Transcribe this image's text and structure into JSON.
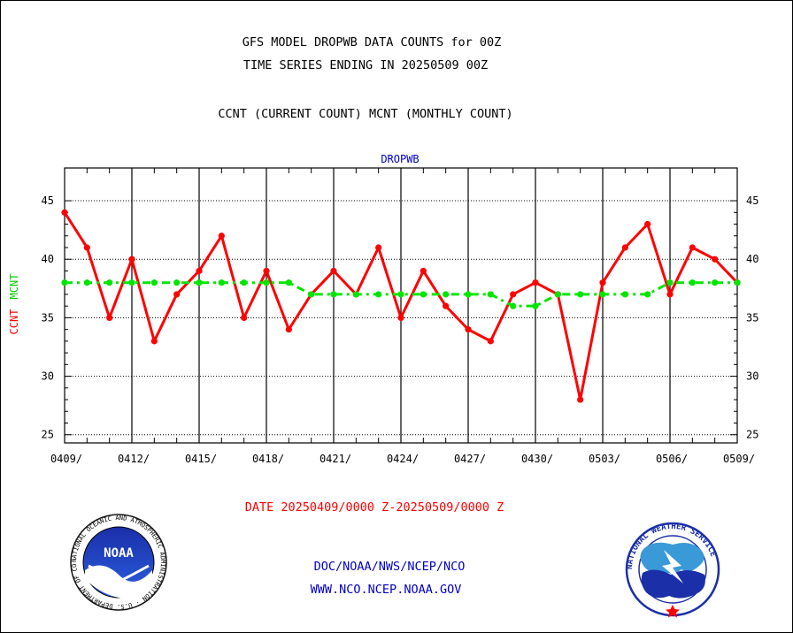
{
  "header": {
    "title_line1": "GFS MODEL DROPWB DATA COUNTS for 00Z",
    "title_line2": "TIME SERIES ENDING IN 20250509 00Z",
    "legend_line": "CCNT (CURRENT COUNT) MCNT (MONTHLY COUNT)"
  },
  "footer": {
    "date_range": "DATE 20250409/0000 Z-20250509/0000 Z",
    "org_line": "DOC/NOAA/NWS/NCEP/NCO",
    "url_line": "WWW.NCO.NCEP.NOAA.GOV"
  },
  "logos": {
    "noaa_text": "NOAA",
    "noaa_ring": "NATIONAL OCEANIC AND ATMOSPHERIC ADMINISTRATION · U.S. DEPARTMENT OF COMMERCE",
    "nws_ring": "NATIONAL WEATHER SERVICE"
  },
  "chart_data": {
    "type": "line",
    "title": "DROPWB",
    "ylabel_series1": "CCNT",
    "ylabel_series2": "MCNT",
    "xlim": [
      0,
      30
    ],
    "ylim": [
      24.3,
      47.8
    ],
    "grid": true,
    "x_tick_labels": [
      "0409/",
      "0412/",
      "0415/",
      "0418/",
      "0421/",
      "0424/",
      "0427/",
      "0430/",
      "0503/",
      "0506/",
      "0509/"
    ],
    "y_ticks": [
      25,
      30,
      35,
      40,
      45
    ],
    "series": [
      {
        "name": "CCNT",
        "color": "#ff0000",
        "style": "solid",
        "values": [
          44,
          41,
          35,
          40,
          33,
          37,
          39,
          42,
          35,
          39,
          34,
          37,
          39,
          37,
          41,
          35,
          39,
          36,
          34,
          33,
          37,
          38,
          37,
          28,
          38,
          41,
          43,
          37,
          41,
          40,
          38
        ]
      },
      {
        "name": "MCNT",
        "color": "#00e600",
        "style": "dash-dot",
        "values": [
          38,
          38,
          38,
          38,
          38,
          38,
          38,
          38,
          38,
          38,
          38,
          37,
          37,
          37,
          37,
          37,
          37,
          37,
          37,
          37,
          36,
          36,
          37,
          37,
          37,
          37,
          37,
          38,
          38,
          38,
          38
        ]
      }
    ]
  },
  "colors": {
    "axis": "#000000",
    "title_blue": "#0000cc",
    "footer_blue": "#0000cc",
    "date_red": "#ff0000"
  }
}
